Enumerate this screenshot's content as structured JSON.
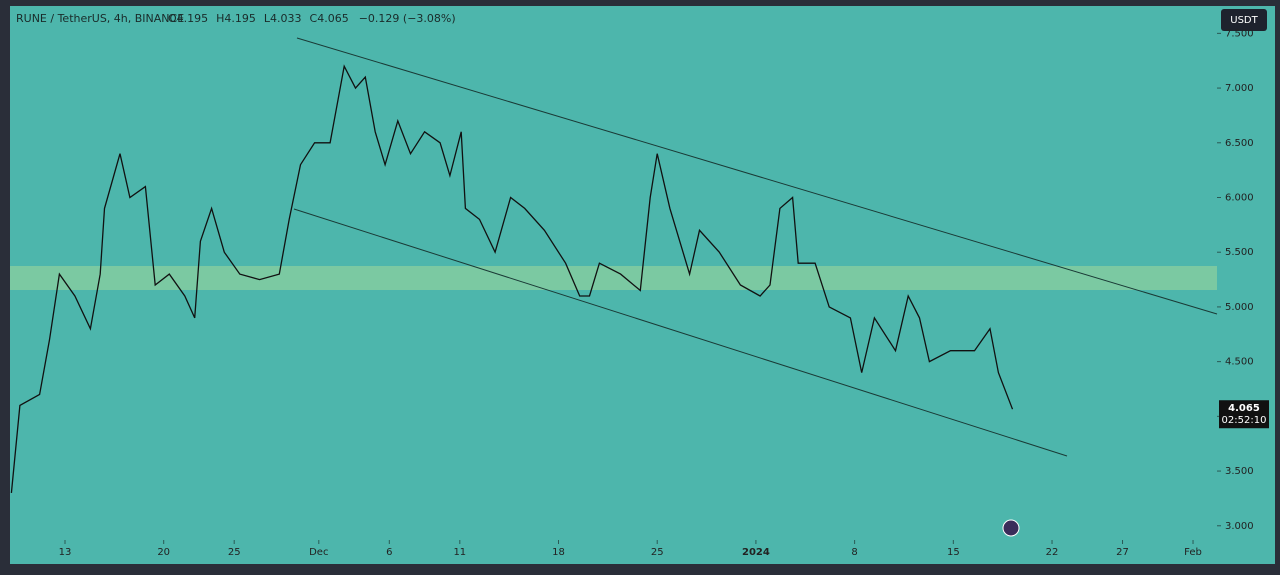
{
  "chart_data": {
    "type": "line",
    "symbol": "RUNE / TetherUS, 4h, BINANCE",
    "ohlc": [
      "O4.195",
      "H4.195",
      "L4.033",
      "C4.065"
    ],
    "change": "−0.129 (−3.08%)",
    "currency": "USDT",
    "last_price": 4.065,
    "countdown": "02:52:10",
    "color": "#111111",
    "x": [
      8.2,
      8.8,
      10.2,
      10.9,
      11.6,
      12.7,
      13.8,
      14.5,
      14.8,
      15.9,
      16.6,
      17.7,
      18.4,
      19.4,
      20.5,
      21.2,
      21.6,
      22.4,
      23.3,
      24.4,
      25.8,
      27.2,
      27.9,
      28.7,
      29.7,
      30.8,
      31.8,
      32.6,
      33.3,
      34.0,
      34.7,
      35.6,
      36.5,
      37.5,
      38.6,
      39.3,
      40.1,
      40.4,
      41.4,
      42.5,
      43.6,
      44.6,
      46.0,
      47.5,
      48.5,
      49.2,
      49.9,
      51.4,
      52.8,
      53.5,
      54.0,
      54.9,
      56.3,
      57.0,
      58.4,
      59.9,
      61.3,
      62.0,
      62.7,
      63.6,
      64.0,
      65.2,
      66.2,
      67.7,
      68.5,
      69.4,
      70.9,
      71.8,
      72.6,
      73.3,
      74.8,
      76.5,
      77.6,
      78.2,
      79.2
    ],
    "values": [
      3.3,
      4.1,
      4.2,
      4.7,
      5.3,
      5.1,
      4.8,
      5.3,
      5.9,
      6.4,
      6.0,
      6.1,
      5.2,
      5.3,
      5.1,
      4.9,
      5.6,
      5.9,
      5.5,
      5.3,
      5.25,
      5.3,
      5.8,
      6.3,
      6.5,
      6.5,
      7.2,
      7.0,
      7.1,
      6.6,
      6.3,
      6.7,
      6.4,
      6.6,
      6.5,
      6.2,
      6.6,
      5.9,
      5.8,
      5.5,
      6.0,
      5.9,
      5.7,
      5.4,
      5.1,
      5.1,
      5.4,
      5.3,
      5.15,
      6.0,
      6.4,
      5.9,
      5.3,
      5.7,
      5.5,
      5.2,
      5.1,
      5.2,
      5.9,
      6.0,
      5.4,
      5.4,
      5.0,
      4.9,
      4.4,
      4.9,
      4.6,
      5.1,
      4.9,
      4.5,
      4.6,
      4.6,
      4.8,
      4.4,
      4.065
    ],
    "xlim": [
      8.1,
      93.7
    ],
    "xticks": [
      {
        "value": 12,
        "label": "13"
      },
      {
        "value": 19,
        "label": "20"
      },
      {
        "value": 24,
        "label": "25"
      },
      {
        "value": 30,
        "label": "Dec"
      },
      {
        "value": 35,
        "label": "6"
      },
      {
        "value": 40,
        "label": "11"
      },
      {
        "value": 47,
        "label": "18"
      },
      {
        "value": 54,
        "label": "25"
      },
      {
        "value": 61,
        "label": "2024"
      },
      {
        "value": 68,
        "label": "8"
      },
      {
        "value": 75,
        "label": "15"
      },
      {
        "value": 82,
        "label": "22"
      },
      {
        "value": 87,
        "label": "27"
      },
      {
        "value": 92,
        "label": "Feb"
      }
    ],
    "ylim": [
      2.87,
      7.75
    ],
    "yticks": [
      {
        "value": 3,
        "label": "3.000"
      },
      {
        "value": 3.5,
        "label": "3.500"
      },
      {
        "value": 4,
        "label": "4.000"
      },
      {
        "value": 4.5,
        "label": "4.500"
      },
      {
        "value": 5,
        "label": "5.000"
      },
      {
        "value": 5.5,
        "label": "5.500"
      },
      {
        "value": 6,
        "label": "6.000"
      },
      {
        "value": 6.5,
        "label": "6.500"
      },
      {
        "value": 7,
        "label": "7.000"
      },
      {
        "value": 7.5,
        "label": "7.500"
      }
    ]
  }
}
